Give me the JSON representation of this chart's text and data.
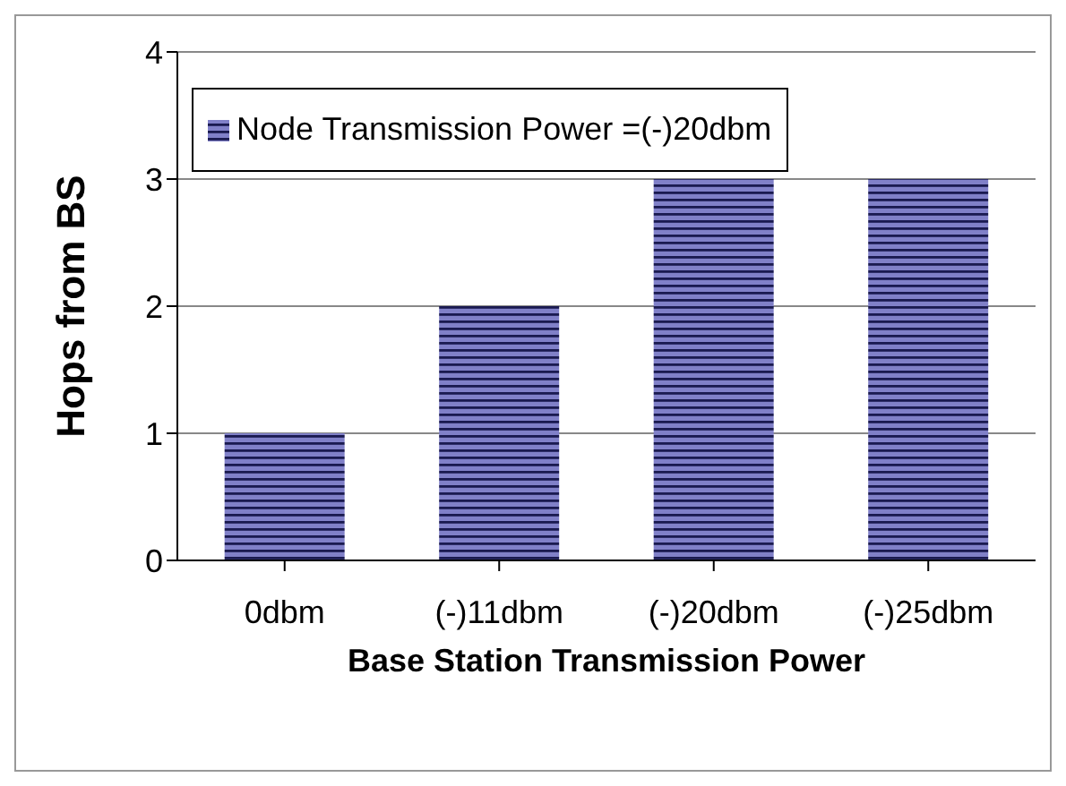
{
  "chart_data": {
    "type": "bar",
    "xlabel": "Base Station Transmission Power",
    "ylabel": "Hops from BS",
    "categories": [
      "0dbm",
      "(-)11dbm",
      "(-)20dbm",
      "(-)25dbm"
    ],
    "series": [
      {
        "name": "Node Transmission Power =(-)20dbm",
        "color": "#8080c8",
        "values": [
          1,
          2,
          3,
          3
        ]
      }
    ],
    "ylim": [
      0,
      4
    ],
    "yticks": [
      0,
      1,
      2,
      3,
      4
    ],
    "grid": "y",
    "legend": "top left"
  }
}
